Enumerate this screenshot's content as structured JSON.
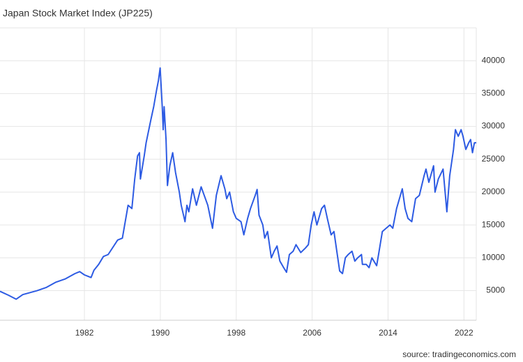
{
  "chart_data": {
    "type": "line",
    "title": "Japan Stock Market Index (JP225)",
    "source": "source: tradingeconomics.com",
    "x": [
      1973.1,
      1974,
      1974.8,
      1975.5,
      1976,
      1977,
      1978,
      1979,
      1980,
      1981,
      1981.5,
      1982,
      1982.7,
      1983,
      1983.5,
      1984,
      1984.5,
      1985,
      1985.5,
      1986,
      1986.3,
      1986.6,
      1987,
      1987.3,
      1987.6,
      1987.8,
      1987.9,
      1988.3,
      1988.5,
      1989,
      1989.3,
      1989.6,
      1989.8,
      1989.98,
      1990.2,
      1990.3,
      1990.4,
      1990.6,
      1990.75,
      1991,
      1991.3,
      1991.6,
      1992,
      1992.2,
      1992.6,
      1992.8,
      1993,
      1993.4,
      1993.8,
      1994.3,
      1995,
      1995.5,
      1995.9,
      1996.4,
      1996.8,
      1997,
      1997.3,
      1997.7,
      1998,
      1998.5,
      1998.8,
      1999.2,
      1999.5,
      2000,
      2000.2,
      2000.4,
      2000.8,
      2001,
      2001.3,
      2001.7,
      2002,
      2002.3,
      2002.6,
      2003,
      2003.3,
      2003.6,
      2004,
      2004.3,
      2004.8,
      2005.3,
      2005.6,
      2005.9,
      2006.2,
      2006.5,
      2006.8,
      2007,
      2007.3,
      2007.6,
      2008,
      2008.3,
      2008.7,
      2008.9,
      2009.2,
      2009.5,
      2009.8,
      2010.2,
      2010.5,
      2010.8,
      2011.2,
      2011.3,
      2011.7,
      2012,
      2012.3,
      2012.8,
      2013,
      2013.4,
      2013.8,
      2014.2,
      2014.5,
      2014.9,
      2015.3,
      2015.5,
      2015.8,
      2016.1,
      2016.5,
      2016.9,
      2017.3,
      2017.8,
      2018,
      2018.3,
      2018.8,
      2018.95,
      2019.3,
      2019.8,
      2020.2,
      2020.5,
      2020.9,
      2021.1,
      2021.4,
      2021.7,
      2021.9,
      2022.2,
      2022.5,
      2022.7,
      2022.9,
      2023.1,
      2023.3
    ],
    "series": [
      {
        "name": "JP225",
        "color": "#2d5be3",
        "values": [
          4900,
          4300,
          3700,
          4400,
          4600,
          5000,
          5500,
          6300,
          6800,
          7600,
          7900,
          7400,
          7000,
          8100,
          9000,
          10200,
          10500,
          11600,
          12700,
          13000,
          15500,
          18000,
          17500,
          22000,
          25500,
          26000,
          22000,
          25500,
          27500,
          31000,
          33000,
          35500,
          37000,
          38900,
          33000,
          29500,
          33000,
          28000,
          21000,
          24000,
          26000,
          23000,
          20000,
          18000,
          15500,
          18000,
          17000,
          20500,
          18000,
          20800,
          18000,
          14500,
          19500,
          22500,
          20500,
          19000,
          20000,
          17000,
          16000,
          15500,
          13500,
          16000,
          17500,
          19500,
          20400,
          16500,
          15000,
          13000,
          14000,
          10000,
          11000,
          11800,
          9500,
          8500,
          7800,
          10500,
          11000,
          12000,
          10800,
          11500,
          12000,
          15000,
          17000,
          15000,
          16500,
          17500,
          18000,
          16000,
          13500,
          14000,
          10000,
          8000,
          7600,
          10000,
          10500,
          11000,
          9500,
          10000,
          10500,
          9000,
          9000,
          8500,
          10000,
          8800,
          10500,
          14000,
          14500,
          15000,
          14500,
          17500,
          19500,
          20500,
          17500,
          16000,
          15500,
          19000,
          19500,
          22500,
          23500,
          21500,
          24000,
          20000,
          22000,
          23500,
          17000,
          22500,
          26500,
          29500,
          28500,
          29500,
          28500,
          26500,
          27500,
          28000,
          26000,
          27500,
          27500
        ]
      }
    ],
    "xlim": [
      1973.1,
      2023.3
    ],
    "xticks": [
      1982,
      1990,
      1998,
      2006,
      2014,
      2022
    ],
    "ylim": [
      500,
      45000
    ],
    "yticks": [
      5000,
      10000,
      15000,
      20000,
      25000,
      30000,
      35000,
      40000
    ],
    "grid": true
  }
}
